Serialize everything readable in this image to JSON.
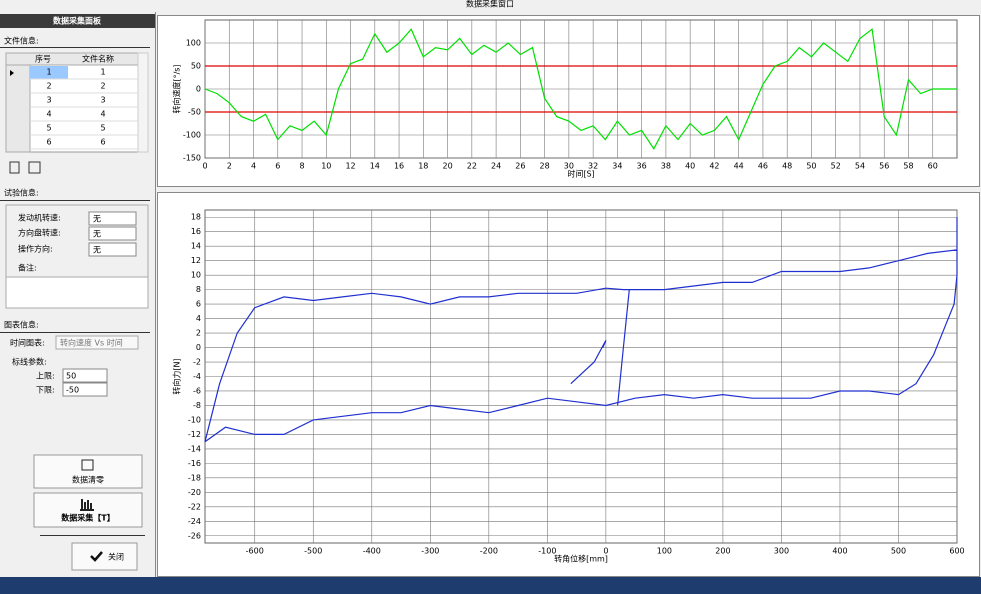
{
  "window_title": "数据采集窗口",
  "panel": {
    "title": "数据采集面板",
    "file_info": {
      "label": "文件信息:",
      "columns": [
        "序号",
        "文件名称"
      ],
      "rows": [
        [
          1,
          1
        ],
        [
          2,
          2
        ],
        [
          3,
          3
        ],
        [
          4,
          4
        ],
        [
          5,
          5
        ],
        [
          6,
          6
        ]
      ]
    },
    "test_info": {
      "label": "试验信息:",
      "engine_speed_label": "发动机转速:",
      "engine_speed": "无",
      "wheel_speed_label": "方向盘转速:",
      "wheel_speed": "无",
      "direction_label": "操作方向:",
      "direction": "无",
      "remark_label": "备注:"
    },
    "chart_info": {
      "label": "图表信息:",
      "time_chart_label": "时间图表:",
      "time_chart": "转向速度 Vs 时间",
      "mark_params_label": "标线参数:",
      "upper_label": "上限:",
      "upper": 50,
      "lower_label": "下限:",
      "lower": -50
    },
    "buttons": {
      "clear": "数据清零",
      "collect": "数据采集【T】",
      "close": "关闭"
    }
  },
  "chart_data": [
    {
      "type": "line",
      "xlabel": "时间[S]",
      "ylabel": "转向速度[°/s]",
      "xlim": [
        0,
        62
      ],
      "xticks": [
        0,
        2,
        4,
        6,
        8,
        10,
        12,
        14,
        16,
        18,
        20,
        22,
        24,
        26,
        28,
        30,
        32,
        34,
        36,
        38,
        40,
        42,
        44,
        46,
        48,
        50,
        52,
        54,
        56,
        58,
        60
      ],
      "ylim": [
        -150,
        150
      ],
      "yticks": [
        -150,
        -100,
        -50,
        0,
        50,
        100
      ],
      "grid": true,
      "ref_color": "#e00000",
      "series": [
        {
          "color": "#00e000",
          "x": [
            0,
            1,
            2,
            3,
            4,
            5,
            6,
            7,
            8,
            9,
            10,
            11,
            12,
            13,
            14,
            15,
            16,
            17,
            18,
            19,
            20,
            21,
            22,
            23,
            24,
            25,
            26,
            27,
            28,
            29,
            30,
            31,
            32,
            33,
            34,
            35,
            36,
            37,
            38,
            39,
            40,
            41,
            42,
            43,
            44,
            45,
            46,
            47,
            48,
            49,
            50,
            51,
            52,
            53,
            54,
            55,
            56,
            57,
            58,
            59,
            60,
            61,
            62
          ],
          "values": [
            0,
            -10,
            -30,
            -60,
            -70,
            -55,
            -110,
            -80,
            -90,
            -70,
            -100,
            0,
            55,
            65,
            120,
            80,
            100,
            130,
            70,
            90,
            85,
            110,
            75,
            95,
            80,
            100,
            75,
            90,
            -20,
            -60,
            -70,
            -90,
            -80,
            -110,
            -70,
            -100,
            -90,
            -130,
            -80,
            -110,
            -75,
            -100,
            -90,
            -60,
            -110,
            -50,
            10,
            50,
            60,
            90,
            70,
            100,
            80,
            60,
            110,
            130,
            -60,
            -100,
            20,
            -10,
            0,
            0,
            0
          ]
        }
      ]
    },
    {
      "type": "line",
      "xlabel": "转角位移[mm]",
      "ylabel": "转向力[N]",
      "xlim": [
        -685,
        600
      ],
      "xticks": [
        -600,
        -500,
        -400,
        -300,
        -200,
        -100,
        0,
        100,
        200,
        300,
        400,
        500,
        600
      ],
      "ylim": [
        -27,
        19
      ],
      "yticks": [
        -26,
        -24,
        -22,
        -20,
        -18,
        -16,
        -14,
        -12,
        -10,
        -8,
        -6,
        -4,
        -2,
        0,
        2,
        4,
        6,
        8,
        10,
        12,
        14,
        16,
        18
      ],
      "grid": true,
      "series": [
        {
          "color": "#2030d0",
          "x": [
            -685,
            -650,
            -600,
            -550,
            -500,
            -450,
            -400,
            -350,
            -300,
            -250,
            -200,
            -150,
            -100,
            -50,
            0,
            50,
            100,
            150,
            200,
            250,
            300,
            350,
            400,
            450,
            500,
            530,
            560,
            580,
            595,
            600,
            600,
            600,
            550,
            500,
            450,
            400,
            350,
            300,
            250,
            200,
            150,
            100,
            50,
            30,
            0,
            -50,
            -100,
            -150,
            -200,
            -250,
            -300,
            -350,
            -400,
            -450,
            -500,
            -550,
            -600,
            -630,
            -660,
            -685,
            null,
            40,
            30,
            20,
            null,
            -60,
            -20,
            0,
            -5
          ],
          "values": [
            -13,
            -11,
            -12,
            -12,
            -10,
            -9.5,
            -9,
            -9,
            -8,
            -8.5,
            -9,
            -8,
            -7,
            -7.5,
            -8,
            -7,
            -6.5,
            -7,
            -6.5,
            -7,
            -7,
            -7,
            -6,
            -6,
            -6.5,
            -5,
            -1,
            3,
            6,
            10,
            18,
            13.5,
            13,
            12,
            11,
            10.5,
            10.5,
            10.5,
            9,
            9,
            8.5,
            8,
            8,
            8,
            8.2,
            7.5,
            7.5,
            7.5,
            7,
            7,
            6,
            7,
            7.5,
            7,
            6.5,
            7,
            5.5,
            2,
            -5,
            -13,
            null,
            8,
            0,
            -8,
            null,
            -5,
            -2,
            1,
            0
          ]
        }
      ]
    }
  ]
}
